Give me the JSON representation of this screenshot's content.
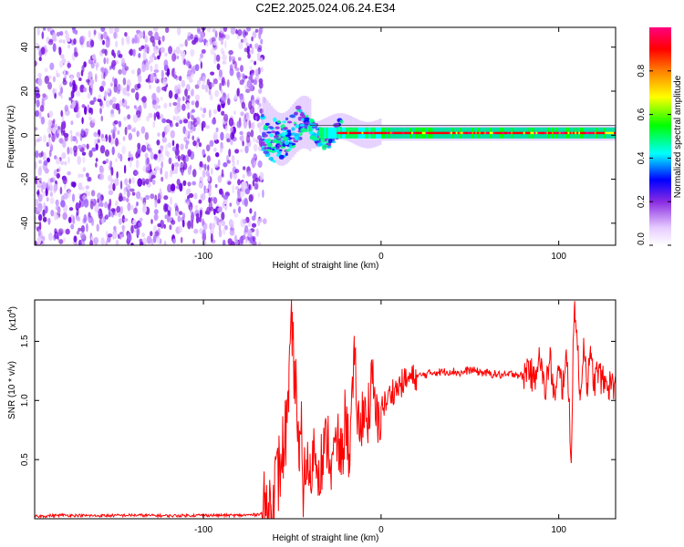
{
  "title": "C2E2.2025.024.06.24.E34",
  "chart_data": [
    {
      "type": "heatmap",
      "xlabel": "Height of straight line (km)",
      "ylabel": "Frequency (Hz)",
      "xlim": [
        -195,
        132
      ],
      "ylim": [
        -50,
        49
      ],
      "xticks": [
        -100,
        0,
        100
      ],
      "xtick_labels": [
        "-100",
        "0",
        "100"
      ],
      "yticks": [
        -40,
        -20,
        0,
        20,
        40
      ],
      "ytick_labels": [
        "-40",
        "-20",
        "0",
        "20",
        "40"
      ],
      "noise_region_x": [
        -195,
        -67
      ],
      "signal_line_frequency_hz": 1,
      "colorbar": {
        "label": "Normalized spectral amplitude",
        "range": [
          0,
          1
        ],
        "ticks": [
          0.0,
          0.2,
          0.4,
          0.6,
          0.8
        ],
        "tick_labels": [
          "0.0",
          "0.2",
          "0.4",
          "0.6",
          "0.8"
        ],
        "colormap": [
          "#ffffff",
          "#8a2be2",
          "#0000ff",
          "#00ffff",
          "#00ff00",
          "#ffff00",
          "#ff8000",
          "#ff0000",
          "#ff0080"
        ]
      }
    },
    {
      "type": "line",
      "xlabel": "Height of straight line (km)",
      "ylabel": "SNR (10 * v/v)",
      "y_multiplier_label": "(x10",
      "y_multiplier_exp": "4",
      "xlim": [
        -195,
        132
      ],
      "ylim": [
        0,
        18500
      ],
      "xticks": [
        -100,
        0,
        100
      ],
      "xtick_labels": [
        "-100",
        "0",
        "100"
      ],
      "yticks": [
        5000,
        10000,
        15000
      ],
      "ytick_labels": [
        "0.5",
        "1.0",
        "1.5"
      ],
      "series": [
        {
          "color": "#ff0000",
          "x": [
            -195,
            -180,
            -160,
            -140,
            -120,
            -100,
            -80,
            -70,
            -65,
            -62,
            -60,
            -58,
            -55,
            -52,
            -50,
            -49,
            -48,
            -47,
            -46,
            -45,
            -44,
            -42,
            -40,
            -38,
            -35,
            -32,
            -30,
            -28,
            -25,
            -22,
            -20,
            -18,
            -15,
            -12,
            -10,
            -8,
            -5,
            -2,
            0,
            3,
            6,
            9,
            12,
            15,
            20,
            25,
            30,
            35,
            40,
            45,
            50,
            55,
            60,
            65,
            70,
            75,
            80,
            83,
            86,
            89,
            92,
            95,
            98,
            100,
            102,
            104,
            106,
            107,
            108,
            109,
            110,
            112,
            114,
            116,
            118,
            120,
            122,
            125,
            128,
            132
          ],
          "y": [
            200,
            300,
            250,
            300,
            250,
            300,
            280,
            350,
            600,
            1200,
            2500,
            3500,
            6000,
            9000,
            17500,
            11000,
            13500,
            6500,
            4000,
            8000,
            2500,
            5000,
            3000,
            6000,
            4500,
            5500,
            7000,
            4000,
            6500,
            5000,
            9000,
            5500,
            13000,
            6500,
            10000,
            8000,
            11500,
            7500,
            9500,
            9800,
            10800,
            11000,
            11500,
            11800,
            12000,
            12200,
            12400,
            12400,
            12500,
            12300,
            12600,
            12400,
            12300,
            12200,
            12100,
            12300,
            12000,
            13000,
            11500,
            14500,
            10500,
            13500,
            10000,
            12500,
            11000,
            14000,
            9500,
            4700,
            13500,
            18400,
            16000,
            10000,
            15000,
            11500,
            13500,
            11500,
            12500,
            11500,
            11300,
            11500
          ]
        }
      ]
    }
  ]
}
